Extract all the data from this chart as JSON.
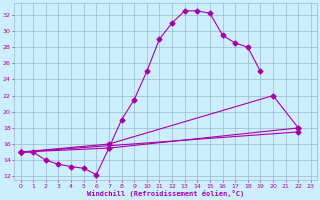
{
  "xlabel": "Windchill (Refroidissement éolien,°C)",
  "background_color": "#cceeff",
  "grid_color": "#99bbcc",
  "line_color": "#aa00aa",
  "xlim": [
    -0.5,
    23.5
  ],
  "ylim": [
    11.5,
    33.5
  ],
  "yticks": [
    12,
    14,
    16,
    18,
    20,
    22,
    24,
    26,
    28,
    30,
    32
  ],
  "xticks": [
    0,
    1,
    2,
    3,
    4,
    5,
    6,
    7,
    8,
    9,
    10,
    11,
    12,
    13,
    14,
    15,
    16,
    17,
    18,
    19,
    20,
    21,
    22,
    23
  ],
  "line1_x": [
    0,
    1,
    2,
    3,
    4,
    5,
    6,
    7,
    8,
    9,
    10,
    11,
    12,
    13,
    14,
    15,
    16,
    17,
    18,
    19
  ],
  "line1_y": [
    15.0,
    15.0,
    14.0,
    13.5,
    13.2,
    13.0,
    12.2,
    15.5,
    19.0,
    21.5,
    25.0,
    29.0,
    31.0,
    32.5,
    32.5,
    32.2,
    29.5,
    28.5,
    28.0,
    25.0
  ],
  "line2_x": [
    0,
    7,
    20,
    22
  ],
  "line2_y": [
    15.0,
    16.0,
    22.0,
    18.0
  ],
  "line3_x": [
    0,
    7,
    22
  ],
  "line3_y": [
    15.0,
    15.5,
    18.0
  ],
  "line4_x": [
    0,
    22
  ],
  "line4_y": [
    15.0,
    17.5
  ]
}
